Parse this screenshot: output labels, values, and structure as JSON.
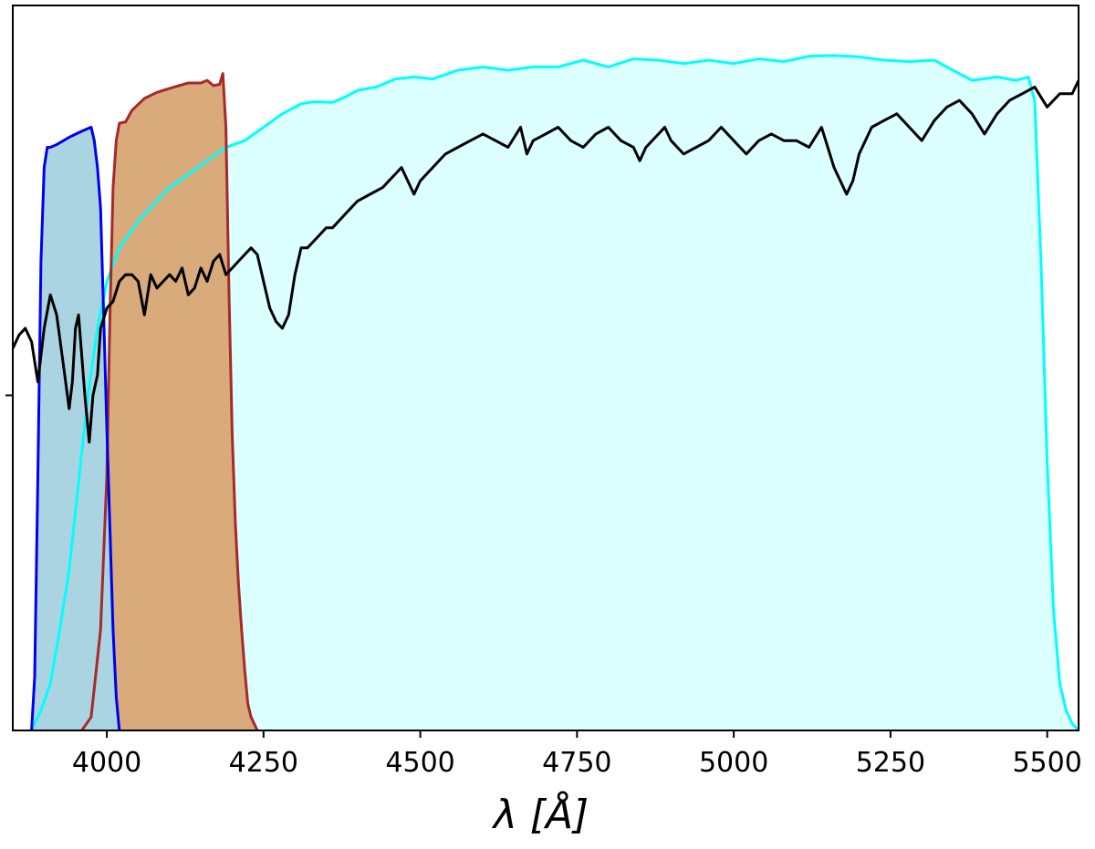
{
  "chart_data": {
    "type": "area",
    "xlabel": "λ [Å]",
    "ylabel": "",
    "xlim": [
      3850,
      5550
    ],
    "ylim": [
      0,
      1
    ],
    "xticks": [
      4000,
      4250,
      4500,
      4750,
      5000,
      5250,
      5500
    ],
    "xtick_labels": [
      "4000",
      "4250",
      "4500",
      "4750",
      "5000",
      "5250",
      "5500"
    ],
    "yticks": [
      0.5
    ],
    "grid": false,
    "colors": {
      "cyan_line": "#00ffff",
      "cyan_fill": "#dcffff",
      "brown_line": "#a52a2a",
      "brown_fill": "#d9aa7a",
      "blue_line": "#0000ee",
      "blue_fill": "#abd4e2",
      "spectrum": "#000000"
    },
    "series": [
      {
        "kind": "filter",
        "color_key": "cyan",
        "x": [
          3880,
          3895,
          3910,
          3925,
          3940,
          3955,
          3970,
          3985,
          4000,
          4020,
          4050,
          4080,
          4100,
          4130,
          4160,
          4190,
          4220,
          4250,
          4280,
          4310,
          4330,
          4360,
          4380,
          4400,
          4430,
          4460,
          4490,
          4520,
          4560,
          4600,
          4640,
          4680,
          4720,
          4760,
          4800,
          4840,
          4880,
          4920,
          4960,
          5000,
          5040,
          5080,
          5120,
          5160,
          5200,
          5240,
          5280,
          5320,
          5340,
          5380,
          5420,
          5450,
          5470,
          5480,
          5490,
          5500,
          5510,
          5520,
          5530,
          5540,
          5550
        ],
        "y": [
          0.0,
          0.03,
          0.07,
          0.15,
          0.24,
          0.37,
          0.5,
          0.6,
          0.67,
          0.72,
          0.76,
          0.79,
          0.81,
          0.83,
          0.85,
          0.87,
          0.88,
          0.9,
          0.92,
          0.935,
          0.938,
          0.937,
          0.945,
          0.955,
          0.96,
          0.972,
          0.975,
          0.972,
          0.985,
          0.99,
          0.985,
          0.99,
          0.99,
          1.0,
          0.99,
          1.002,
          1.0,
          0.995,
          1.0,
          0.995,
          1.002,
          0.998,
          1.006,
          1.007,
          1.005,
          1.0,
          0.998,
          1.0,
          0.99,
          0.97,
          0.975,
          0.97,
          0.975,
          0.94,
          0.7,
          0.4,
          0.18,
          0.07,
          0.03,
          0.01,
          0.0
        ]
      },
      {
        "kind": "filter",
        "color_key": "brown",
        "x": [
          3960,
          3975,
          3990,
          4000,
          4005,
          4010,
          4015,
          4020,
          4030,
          4040,
          4060,
          4080,
          4100,
          4130,
          4150,
          4160,
          4170,
          4180,
          4185,
          4190,
          4195,
          4200,
          4205,
          4210,
          4215,
          4220,
          4225,
          4230,
          4240
        ],
        "y": [
          0.0,
          0.02,
          0.15,
          0.38,
          0.62,
          0.81,
          0.88,
          0.906,
          0.908,
          0.925,
          0.943,
          0.952,
          0.958,
          0.966,
          0.966,
          0.97,
          0.962,
          0.964,
          0.98,
          0.9,
          0.65,
          0.44,
          0.31,
          0.22,
          0.15,
          0.09,
          0.04,
          0.02,
          0.0
        ]
      },
      {
        "kind": "filter",
        "color_key": "blue",
        "x": [
          3880,
          3885,
          3890,
          3895,
          3900,
          3905,
          3910,
          3920,
          3940,
          3960,
          3975,
          3980,
          3985,
          3990,
          3995,
          4000,
          4005,
          4010,
          4015,
          4020
        ],
        "y": [
          0.0,
          0.08,
          0.38,
          0.7,
          0.84,
          0.87,
          0.87,
          0.874,
          0.885,
          0.894,
          0.9,
          0.88,
          0.84,
          0.78,
          0.62,
          0.45,
          0.3,
          0.15,
          0.05,
          0.0
        ]
      },
      {
        "kind": "spectrum",
        "color_key": "spectrum",
        "x": [
          3850,
          3860,
          3870,
          3880,
          3890,
          3900,
          3910,
          3920,
          3930,
          3940,
          3945,
          3950,
          3955,
          3965,
          3972,
          3978,
          3985,
          3990,
          4000,
          4010,
          4020,
          4030,
          4040,
          4050,
          4060,
          4070,
          4080,
          4090,
          4100,
          4110,
          4120,
          4130,
          4140,
          4150,
          4160,
          4170,
          4180,
          4190,
          4200,
          4210,
          4220,
          4230,
          4240,
          4250,
          4260,
          4270,
          4280,
          4290,
          4300,
          4305,
          4310,
          4320,
          4330,
          4340,
          4350,
          4360,
          4370,
          4380,
          4390,
          4400,
          4420,
          4440,
          4450,
          4460,
          4470,
          4480,
          4490,
          4500,
          4520,
          4540,
          4560,
          4580,
          4600,
          4620,
          4640,
          4660,
          4670,
          4680,
          4700,
          4720,
          4740,
          4760,
          4780,
          4800,
          4820,
          4840,
          4850,
          4860,
          4880,
          4890,
          4900,
          4920,
          4940,
          4960,
          4980,
          5000,
          5020,
          5040,
          5060,
          5080,
          5100,
          5120,
          5140,
          5160,
          5170,
          5180,
          5190,
          5200,
          5220,
          5240,
          5260,
          5280,
          5300,
          5320,
          5340,
          5360,
          5380,
          5400,
          5420,
          5440,
          5460,
          5480,
          5500,
          5520,
          5540,
          5550
        ],
        "y": [
          0.57,
          0.59,
          0.6,
          0.58,
          0.52,
          0.6,
          0.65,
          0.62,
          0.55,
          0.48,
          0.52,
          0.6,
          0.62,
          0.5,
          0.43,
          0.5,
          0.53,
          0.6,
          0.63,
          0.64,
          0.67,
          0.68,
          0.68,
          0.67,
          0.62,
          0.68,
          0.66,
          0.67,
          0.68,
          0.67,
          0.69,
          0.65,
          0.66,
          0.69,
          0.67,
          0.7,
          0.71,
          0.68,
          0.69,
          0.7,
          0.71,
          0.72,
          0.71,
          0.67,
          0.63,
          0.61,
          0.6,
          0.62,
          0.68,
          0.7,
          0.72,
          0.72,
          0.73,
          0.74,
          0.75,
          0.75,
          0.76,
          0.77,
          0.78,
          0.79,
          0.8,
          0.81,
          0.82,
          0.83,
          0.84,
          0.82,
          0.8,
          0.82,
          0.84,
          0.86,
          0.87,
          0.88,
          0.89,
          0.88,
          0.87,
          0.9,
          0.86,
          0.88,
          0.89,
          0.9,
          0.88,
          0.87,
          0.89,
          0.9,
          0.88,
          0.87,
          0.85,
          0.87,
          0.89,
          0.9,
          0.88,
          0.86,
          0.87,
          0.88,
          0.9,
          0.88,
          0.86,
          0.88,
          0.89,
          0.88,
          0.88,
          0.87,
          0.9,
          0.84,
          0.82,
          0.8,
          0.82,
          0.86,
          0.9,
          0.91,
          0.92,
          0.9,
          0.88,
          0.91,
          0.93,
          0.94,
          0.92,
          0.89,
          0.92,
          0.94,
          0.95,
          0.96,
          0.93,
          0.95,
          0.95,
          0.97
        ]
      }
    ]
  }
}
